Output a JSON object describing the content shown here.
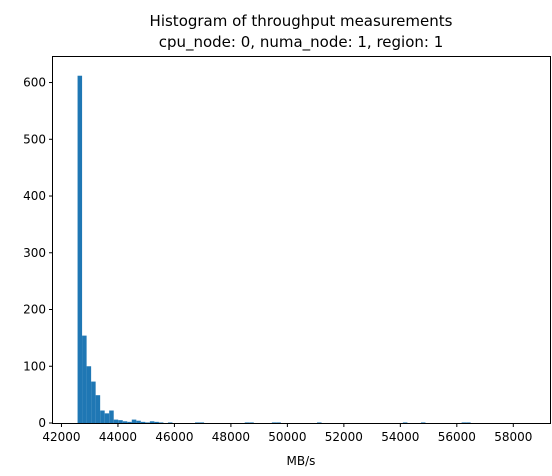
{
  "chart_data": {
    "type": "histogram",
    "title": [
      "Histogram of throughput measurements",
      "cpu_node: 0, numa_node: 1, region: 1"
    ],
    "xlabel": "MB/s",
    "ylabel": "",
    "xlim": [
      41700,
      59300
    ],
    "ylim": [
      0,
      645
    ],
    "x_ticks": [
      42000,
      44000,
      46000,
      48000,
      50000,
      52000,
      54000,
      56000,
      58000
    ],
    "y_ticks": [
      0,
      100,
      200,
      300,
      400,
      500,
      600
    ],
    "grid": false,
    "series": [
      {
        "color": "#1f77b4",
        "bin_start": 42570,
        "bin_width": 160,
        "counts": [
          612,
          154,
          100,
          73,
          49,
          22,
          17,
          22,
          6,
          5,
          3,
          2,
          6,
          4,
          2,
          1,
          3,
          2,
          1,
          0,
          1,
          0,
          0,
          0,
          0,
          0,
          1,
          1,
          0,
          0,
          0,
          0,
          0,
          0,
          0,
          0,
          0,
          1,
          1,
          0,
          0,
          0,
          0,
          1,
          1,
          0,
          0,
          0,
          0,
          0,
          0,
          0,
          0,
          1,
          0,
          0,
          0,
          0,
          0,
          0,
          0,
          0,
          0,
          0,
          0,
          0,
          0,
          0,
          0,
          0,
          0,
          0,
          1,
          0,
          0,
          0,
          1,
          0,
          0,
          0,
          0,
          0,
          0,
          0,
          0,
          1,
          1,
          0,
          0,
          0,
          0,
          0,
          0,
          0,
          0,
          0,
          0,
          0,
          0,
          0
        ]
      }
    ]
  }
}
